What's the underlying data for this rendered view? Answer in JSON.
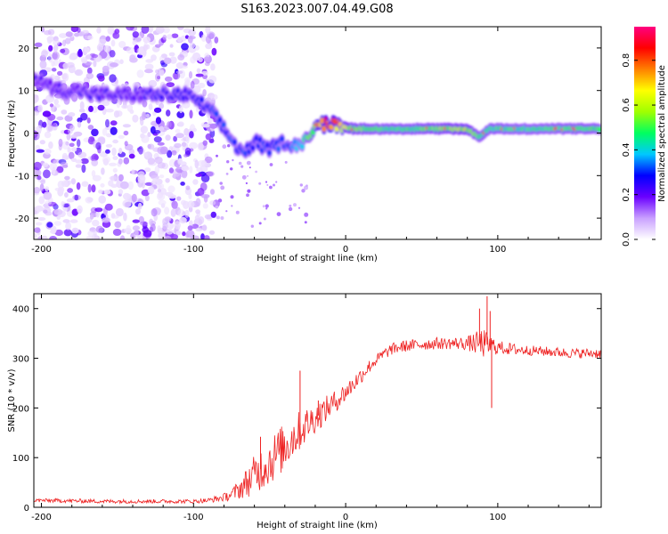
{
  "chart_data": [
    {
      "type": "heatmap",
      "title": "S163.2023.007.04.49.G08",
      "xlabel": "Height of straight line (km)",
      "ylabel": "Frequency (Hz)",
      "xlim": [
        -205,
        168
      ],
      "ylim": [
        -25,
        25
      ],
      "xticks": [
        -200,
        -100,
        0,
        100
      ],
      "xtick_labels": [
        "-200",
        "-100",
        "0",
        "100"
      ],
      "yticks": [
        20,
        10,
        0,
        -10,
        -20
      ],
      "ytick_labels": [
        "20",
        "10",
        "0",
        "-10",
        "-20"
      ],
      "colorbar": {
        "label": "Normalized spectral amplitude",
        "range": [
          0,
          0.95
        ],
        "ticks": [
          0.0,
          0.2,
          0.4,
          0.6,
          0.8
        ],
        "tick_labels": [
          "0.0",
          "0.2",
          "0.4",
          "0.6",
          "0.8"
        ],
        "colors": [
          "#ffffff",
          "#c9a0ff",
          "#6a00ff",
          "#0000ff",
          "#00c8ff",
          "#00ff60",
          "#a0ff00",
          "#ffff00",
          "#ff8000",
          "#ff0000",
          "#ff0080"
        ]
      },
      "ridge": {
        "x": [
          -205,
          -195,
          -185,
          -175,
          -165,
          -155,
          -145,
          -135,
          -125,
          -115,
          -105,
          -95,
          -88,
          -82,
          -76,
          -70,
          -64,
          -58,
          -52,
          -46,
          -40,
          -34,
          -28,
          -22,
          -16,
          -10,
          -4,
          5,
          20,
          40,
          60,
          80,
          88,
          95,
          110,
          130,
          150,
          168
        ],
        "freq": [
          13,
          11,
          10,
          10,
          9,
          9,
          9,
          9,
          9,
          9,
          9,
          7,
          5,
          2,
          -1,
          -4,
          -4,
          -2,
          -4,
          -3,
          -2,
          -3,
          -2,
          0,
          2,
          2,
          2,
          1,
          1,
          1,
          1,
          1,
          -1,
          1,
          1,
          1,
          1,
          1
        ],
        "amp": [
          0.2,
          0.2,
          0.22,
          0.22,
          0.22,
          0.22,
          0.2,
          0.22,
          0.25,
          0.25,
          0.25,
          0.28,
          0.3,
          0.32,
          0.32,
          0.32,
          0.3,
          0.3,
          0.32,
          0.32,
          0.33,
          0.35,
          0.45,
          0.55,
          0.85,
          0.85,
          0.7,
          0.55,
          0.5,
          0.5,
          0.55,
          0.6,
          0.5,
          0.5,
          0.48,
          0.48,
          0.5,
          0.5
        ]
      }
    },
    {
      "type": "line",
      "xlabel": "Height of straight line (km)",
      "ylabel": "SNR (10 * v/v)",
      "xlim": [
        -205,
        168
      ],
      "ylim": [
        0,
        430
      ],
      "xticks": [
        -200,
        -100,
        0,
        100
      ],
      "xtick_labels": [
        "-200",
        "-100",
        "0",
        "100"
      ],
      "yticks": [
        0,
        100,
        200,
        300,
        400
      ],
      "ytick_labels": [
        "0",
        "100",
        "200",
        "300",
        "400"
      ],
      "color": "#ee2222",
      "series": [
        {
          "name": "SNR",
          "x": [
            -205,
            -180,
            -160,
            -140,
            -120,
            -100,
            -90,
            -80,
            -75,
            -70,
            -65,
            -60,
            -55,
            -50,
            -45,
            -40,
            -35,
            -30,
            -25,
            -20,
            -15,
            -10,
            -5,
            0,
            5,
            10,
            15,
            20,
            25,
            30,
            35,
            40,
            50,
            60,
            70,
            80,
            90,
            100,
            110,
            120,
            130,
            140,
            150,
            160,
            168
          ],
          "values": [
            14,
            13,
            12,
            12,
            12,
            12,
            14,
            20,
            26,
            36,
            50,
            65,
            80,
            92,
            108,
            122,
            140,
            155,
            168,
            180,
            192,
            205,
            218,
            232,
            248,
            265,
            282,
            296,
            308,
            318,
            322,
            325,
            328,
            330,
            330,
            330,
            330,
            322,
            318,
            316,
            314,
            312,
            310,
            310,
            310
          ],
          "noise": [
            4,
            4,
            4,
            4,
            4,
            4,
            5,
            8,
            12,
            20,
            30,
            40,
            45,
            48,
            50,
            48,
            45,
            40,
            35,
            30,
            28,
            24,
            22,
            20,
            18,
            16,
            14,
            12,
            12,
            12,
            12,
            12,
            12,
            12,
            12,
            14,
            30,
            14,
            12,
            10,
            10,
            10,
            10,
            10,
            10
          ]
        }
      ],
      "spikes": [
        {
          "x": -56,
          "value": 142
        },
        {
          "x": -30,
          "value": 275
        },
        {
          "x": -18,
          "value": 215
        },
        {
          "x": 88,
          "value": 400
        },
        {
          "x": 91,
          "value": 345
        },
        {
          "x": 93,
          "value": 425
        },
        {
          "x": 95,
          "value": 395
        },
        {
          "x": 96,
          "value": 200
        }
      ]
    }
  ]
}
